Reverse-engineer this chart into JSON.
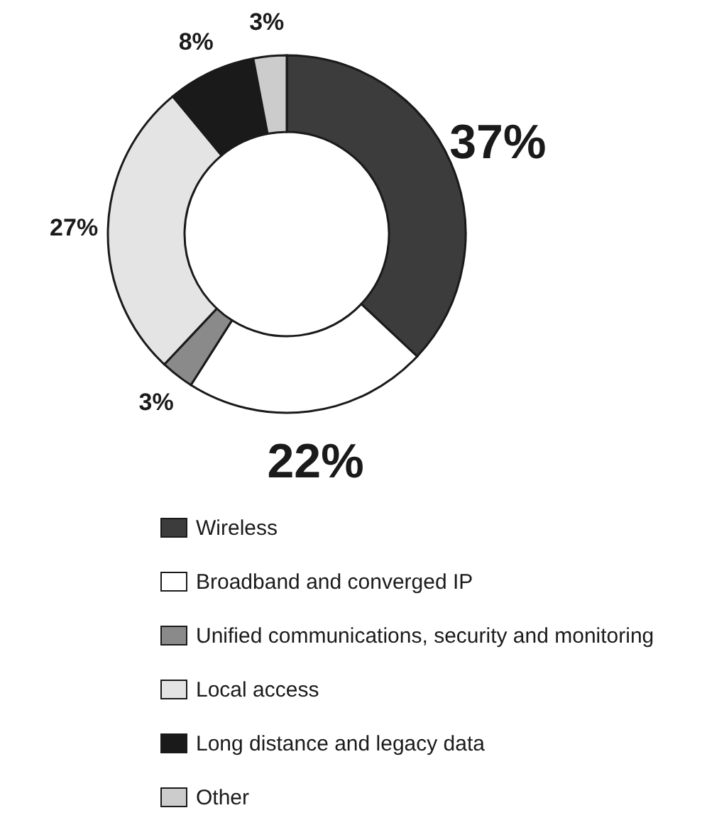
{
  "chart_data": {
    "type": "donut",
    "categories": [
      "Wireless",
      "Broadband and converged IP",
      "Unified communications, security and monitoring",
      "Local access",
      "Long distance and legacy data",
      "Other"
    ],
    "values": [
      37,
      22,
      3,
      27,
      8,
      3
    ],
    "value_labels": [
      "37%",
      "22%",
      "3%",
      "27%",
      "8%",
      "3%"
    ],
    "colors": [
      "#3c3c3c",
      "#ffffff",
      "#8a8a8a",
      "#e4e4e4",
      "#1a1a1a",
      "#cccccc"
    ],
    "legend": "bottom"
  }
}
